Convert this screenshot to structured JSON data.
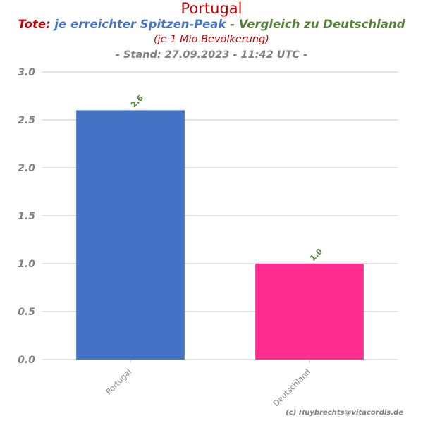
{
  "header": {
    "title": "Portugal",
    "subtitle_part1": "Tote:",
    "subtitle_part2": "je erreichter Spitzen-Peak",
    "subtitle_part3": "- Vergleich zu Deutschland",
    "subtitle2": "(je 1 Mio Bevölkerung)",
    "subtitle3": "- Stand: 27.09.2023 - 11:42 UTC -"
  },
  "footer": {
    "copyright": "(c) Huybrechts@vitacordis.de"
  },
  "chart_data": {
    "type": "bar",
    "categories": [
      "Portugal",
      "Deutschland"
    ],
    "values": [
      2.6,
      1.0
    ],
    "value_labels": [
      "2.6",
      "1.0"
    ],
    "bar_colors": [
      "#4472c4",
      "#ff2d8f"
    ],
    "ylim": [
      0,
      3.0
    ],
    "yticks": [
      0.0,
      0.5,
      1.0,
      1.5,
      2.0,
      2.5,
      3.0
    ],
    "ytick_labels": [
      "0.0",
      "0.5",
      "1.0",
      "1.5",
      "2.0",
      "2.5",
      "3.0"
    ],
    "grid": true,
    "xlabel": "",
    "ylabel": ""
  }
}
